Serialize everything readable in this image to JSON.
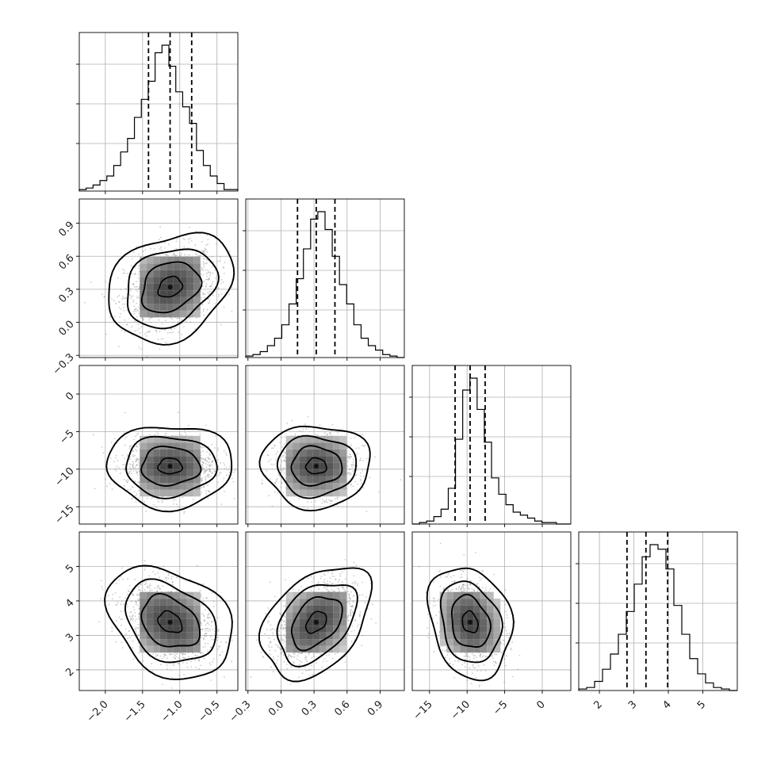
{
  "chart_data": {
    "type": "corner",
    "parameters": [
      {
        "range": [
          -2.35,
          -0.22
        ],
        "ticks": [
          -2.0,
          -1.5,
          -1.0,
          -0.5
        ],
        "tick_labels": [
          "−2.0",
          "−1.5",
          "−1.0",
          "−0.5"
        ],
        "quantiles": [
          -1.42,
          -1.13,
          -0.84
        ],
        "mean": -1.13,
        "sd": 0.29,
        "hist_counts": [
          1,
          2,
          4,
          7,
          10,
          17,
          26,
          35,
          49,
          61,
          73,
          92,
          97,
          83,
          66,
          56,
          45,
          27,
          17,
          10,
          5,
          1,
          1
        ]
      },
      {
        "range": [
          -0.32,
          1.12
        ],
        "ticks": [
          -0.3,
          0.0,
          0.3,
          0.6,
          0.9
        ],
        "tick_labels": [
          "−0.3",
          "0.0",
          "0.3",
          "0.6",
          "0.9"
        ],
        "quantiles": [
          0.15,
          0.32,
          0.49
        ],
        "mean": 0.32,
        "sd": 0.17,
        "hist_counts": [
          1,
          2,
          4,
          8,
          13,
          22,
          36,
          53,
          73,
          93,
          98,
          86,
          68,
          49,
          36,
          22,
          13,
          8,
          5,
          2,
          1,
          0
        ]
      },
      {
        "range": [
          -17.3,
          3.8
        ],
        "ticks": [
          -15,
          -10,
          -5,
          0
        ],
        "tick_labels": [
          "−15",
          "−10",
          "−5",
          "0"
        ],
        "quantiles": [
          -11.6,
          -9.6,
          -7.6
        ],
        "mean": -9.6,
        "sd": 1.9,
        "hist_counts": [
          0,
          1,
          2,
          5,
          10,
          24,
          57,
          90,
          98,
          77,
          55,
          31,
          20,
          13,
          8,
          6,
          4,
          2,
          1,
          1,
          0,
          0
        ]
      },
      {
        "range": [
          1.4,
          6.0
        ],
        "ticks": [
          2,
          3,
          4,
          5
        ],
        "tick_labels": [
          "2",
          "3",
          "4",
          "5"
        ],
        "quantiles": [
          2.8,
          3.35,
          3.98
        ],
        "mean": 3.38,
        "sd": 0.56,
        "hist_counts": [
          1,
          2,
          6,
          14,
          24,
          37,
          52,
          70,
          88,
          96,
          93,
          80,
          56,
          37,
          21,
          11,
          5,
          2,
          1,
          0
        ]
      }
    ],
    "correlations": [
      [
        1.0,
        0.25,
        0.0,
        -0.3
      ],
      [
        0.25,
        1.0,
        0.0,
        0.4
      ],
      [
        0.0,
        0.0,
        1.0,
        -0.2
      ],
      [
        -0.3,
        0.4,
        -0.2,
        1.0
      ]
    ],
    "colors": {
      "line": "#000000",
      "points": "#8c8c8c",
      "grid": "#b0b0b0"
    },
    "grid": true
  }
}
